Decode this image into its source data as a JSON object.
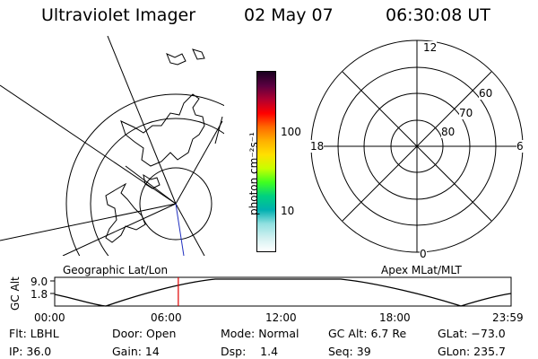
{
  "header": {
    "instrument": "Ultraviolet Imager",
    "date": "02 May 07",
    "time": "06:30:08 UT"
  },
  "left_panel": {
    "label": "Geographic Lat/Lon"
  },
  "right_panel": {
    "label": "Apex  MLat/MLT",
    "mlt_labels": {
      "top": "12",
      "left": "18",
      "right": "6",
      "bottom": "0"
    },
    "lat_labels": [
      "60",
      "70",
      "80"
    ]
  },
  "colorbar": {
    "unit_label": "photon cm⁻²s⁻¹",
    "ticks": [
      "100",
      "10"
    ],
    "colors": [
      "#1a0020",
      "#5a0040",
      "#b00030",
      "#ff0000",
      "#ff6a00",
      "#ffb000",
      "#ffe000",
      "#c8ff00",
      "#40ff20",
      "#00d080",
      "#00b0b0",
      "#90e0e0",
      "#d0f0f0",
      "#ffffff"
    ]
  },
  "orbit_plot": {
    "ylabel": "GC Alt",
    "yticks": [
      "9.0",
      "1.8"
    ],
    "xticks": [
      "00:00",
      "06:00",
      "12:00",
      "18:00",
      "23:59"
    ],
    "current_time_hours": 6.5
  },
  "status": {
    "flt": "Flt: LBHL",
    "door": "Door: Open",
    "mode": "Mode: Normal",
    "gcalt": "GC Alt: 6.7 Re",
    "glat": "GLat: −73.0",
    "ip": "IP: 36.0",
    "gain": "Gain: 14",
    "dsp": "Dsp:    1.4",
    "seq": "Seq: 39",
    "glon": "GLon: 235.7"
  }
}
